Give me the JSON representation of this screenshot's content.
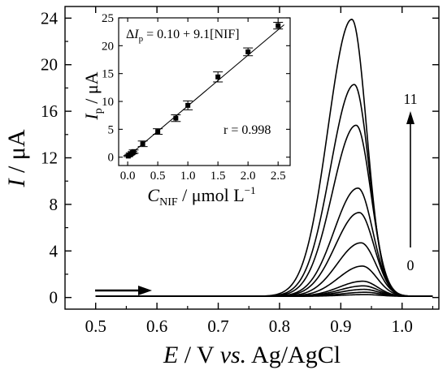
{
  "chart_data": [
    {
      "type": "line",
      "xlabel": {
        "italic": "E",
        "plain": " / V ",
        "italic2": "vs.",
        "plain2": " Ag/AgCl"
      },
      "ylabel": {
        "italic": "I",
        "plain": " / μA"
      },
      "xlim": [
        0.45,
        1.06
      ],
      "ylim": [
        -1,
        25
      ],
      "xticks": [
        0.5,
        0.6,
        0.7,
        0.8,
        0.9,
        1.0
      ],
      "xtick_labels": [
        "0.5",
        "0.6",
        "0.7",
        "0.8",
        "0.9",
        "1.0"
      ],
      "yticks": [
        0,
        4,
        8,
        12,
        16,
        20,
        24
      ],
      "ytick_labels": [
        "0",
        "4",
        "8",
        "12",
        "16",
        "20",
        "24"
      ],
      "x_range": [
        0.5,
        1.05
      ],
      "baseline": 0.1,
      "annotations": {
        "top": "11",
        "bottom": "0"
      },
      "series": [
        {
          "peak_x": 0.94,
          "peak_y": 0.15
        },
        {
          "peak_x": 0.94,
          "peak_y": 0.35
        },
        {
          "peak_x": 0.938,
          "peak_y": 0.6
        },
        {
          "peak_x": 0.937,
          "peak_y": 0.9
        },
        {
          "peak_x": 0.936,
          "peak_y": 1.3
        },
        {
          "peak_x": 0.935,
          "peak_y": 2.6
        },
        {
          "peak_x": 0.933,
          "peak_y": 4.6
        },
        {
          "peak_x": 0.93,
          "peak_y": 7.2
        },
        {
          "peak_x": 0.928,
          "peak_y": 9.3
        },
        {
          "peak_x": 0.925,
          "peak_y": 14.7
        },
        {
          "peak_x": 0.922,
          "peak_y": 18.2
        },
        {
          "peak_x": 0.918,
          "peak_y": 23.8
        }
      ]
    },
    {
      "type": "scatter",
      "xlabel": {
        "italic": "C",
        "sub": "NIF",
        "plain": " / μmol L",
        "sup": "−1"
      },
      "ylabel": {
        "italic": "I",
        "sub": "p",
        "plain": " / μA"
      },
      "xlim": [
        -0.15,
        2.7
      ],
      "ylim": [
        -1.5,
        25
      ],
      "xticks": [
        0,
        0.5,
        1,
        1.5,
        2,
        2.5
      ],
      "xtick_labels": [
        "0.0",
        "0.5",
        "1.0",
        "1.5",
        "2.0",
        "2.5"
      ],
      "yticks": [
        0,
        5,
        10,
        15,
        20,
        25
      ],
      "ytick_labels": [
        "0",
        "5",
        "10",
        "15",
        "20",
        "25"
      ],
      "equation": {
        "delta": "Δ",
        "italic": "I",
        "sub": "p",
        "rest": " = 0.10 + 9.1[NIF]"
      },
      "r_text": "r = 0.998",
      "fit": {
        "intercept": 0.1,
        "slope": 9.1,
        "x_range": [
          0,
          2.6
        ]
      },
      "points": [
        {
          "x": 0.01,
          "y": 0.2,
          "err": 0.1
        },
        {
          "x": 0.03,
          "y": 0.4,
          "err": 0.1
        },
        {
          "x": 0.05,
          "y": 0.6,
          "err": 0.15
        },
        {
          "x": 0.08,
          "y": 0.8,
          "err": 0.2
        },
        {
          "x": 0.1,
          "y": 1.0,
          "err": 0.3
        },
        {
          "x": 0.25,
          "y": 2.4,
          "err": 0.5
        },
        {
          "x": 0.5,
          "y": 4.6,
          "err": 0.5
        },
        {
          "x": 0.8,
          "y": 7.0,
          "err": 0.6
        },
        {
          "x": 1.0,
          "y": 9.3,
          "err": 0.8
        },
        {
          "x": 1.5,
          "y": 14.4,
          "err": 0.9
        },
        {
          "x": 2.0,
          "y": 18.9,
          "err": 0.7
        },
        {
          "x": 2.5,
          "y": 23.6,
          "err": 0.6
        }
      ]
    }
  ]
}
